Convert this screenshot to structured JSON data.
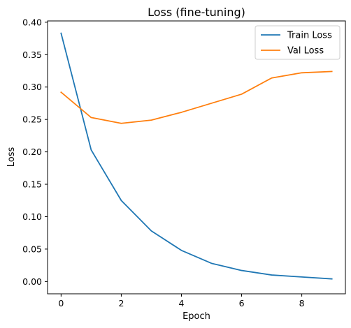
{
  "chart_data": {
    "type": "line",
    "title": "Loss (fine-tuning)",
    "xlabel": "Epoch",
    "ylabel": "Loss",
    "x": [
      0,
      1,
      2,
      3,
      4,
      5,
      6,
      7,
      8,
      9
    ],
    "xlim": [
      -0.45,
      9.45
    ],
    "ylim": [
      -0.019,
      0.402
    ],
    "xticks": [
      0,
      2,
      4,
      6,
      8
    ],
    "yticks": [
      0.0,
      0.05,
      0.1,
      0.15,
      0.2,
      0.25,
      0.3,
      0.35,
      0.4
    ],
    "ytick_labels": [
      "0.00",
      "0.05",
      "0.10",
      "0.15",
      "0.20",
      "0.25",
      "0.30",
      "0.35",
      "0.40"
    ],
    "grid": false,
    "legend_position": "top-right",
    "series": [
      {
        "name": "Train Loss",
        "color": "#1f77b4",
        "values": [
          0.383,
          0.203,
          0.125,
          0.078,
          0.048,
          0.028,
          0.017,
          0.01,
          0.007,
          0.004
        ]
      },
      {
        "name": "Val Loss",
        "color": "#ff7f0e",
        "values": [
          0.292,
          0.253,
          0.244,
          0.249,
          0.261,
          0.275,
          0.289,
          0.314,
          0.322,
          0.324
        ]
      }
    ]
  }
}
